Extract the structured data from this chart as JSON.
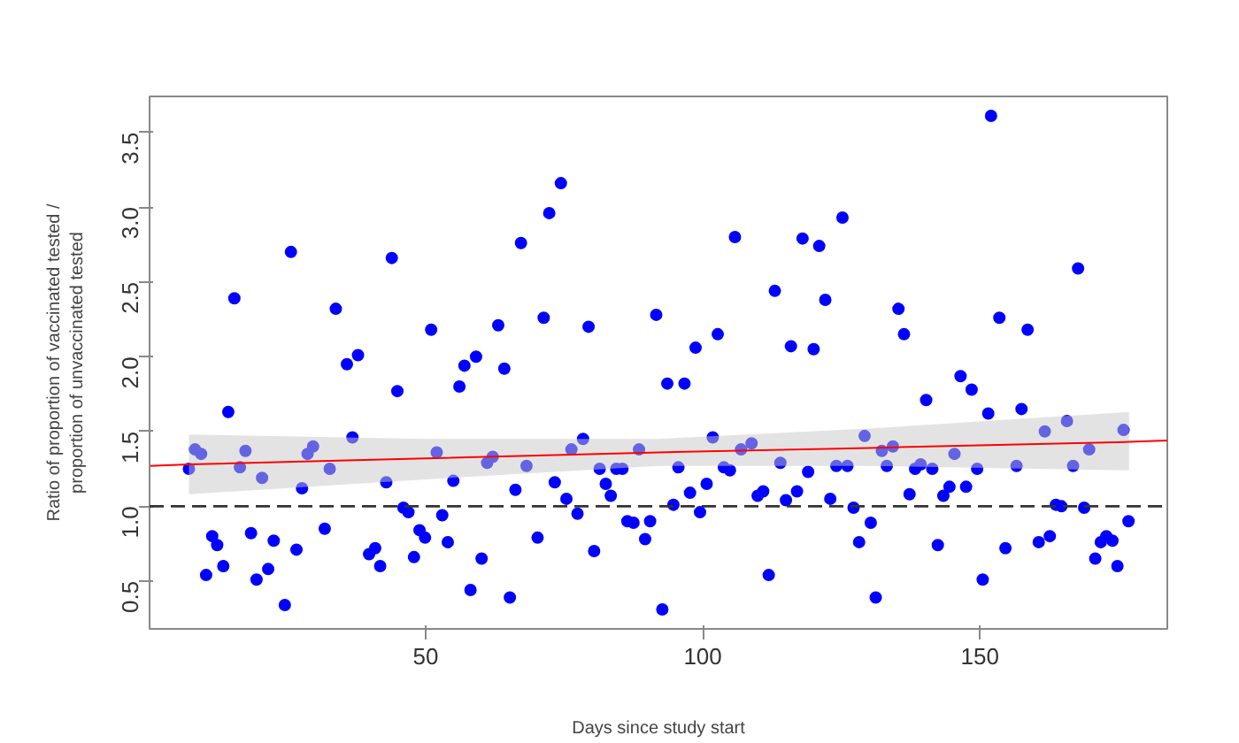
{
  "chart_data": {
    "type": "scatter",
    "xlabel": "Days since study start",
    "ylabel": "Ratio of proportion of vaccinated tested /\nproportion of unvaccinated tested",
    "xlim": [
      0.2,
      183.8
    ],
    "ylim": [
      0.18,
      3.74
    ],
    "xticks": [
      50,
      100,
      150
    ],
    "yticks": [
      {
        "value": 0.5,
        "label": "0.5"
      },
      {
        "value": 1,
        "label": "1.0"
      },
      {
        "value": 1.5,
        "label": "1.5"
      },
      {
        "value": 2,
        "label": "2.0"
      },
      {
        "value": 2.5,
        "label": "2.5"
      },
      {
        "value": 3,
        "label": "3.0"
      },
      {
        "value": 3.5,
        "label": "3.5"
      }
    ],
    "grid": false,
    "ref_lines": [
      {
        "axis": "y",
        "value": 1,
        "color": "#333333",
        "line_style": "dashed"
      }
    ],
    "series": [
      {
        "color": "#0000ff",
        "marker": "circle",
        "x": [
          7.3,
          8.4,
          9.5,
          10.4,
          11.5,
          12.4,
          13.5,
          14.4,
          15.5,
          16.5,
          17.5,
          18.5,
          19.5,
          20.5,
          21.6,
          22.6,
          24.6,
          25.7,
          26.7,
          27.7,
          28.7,
          29.7,
          31.8,
          32.7,
          33.8,
          35.8,
          36.8,
          37.8,
          39.8,
          40.9,
          41.8,
          42.9,
          43.9,
          44.9,
          46,
          46.9,
          47.9,
          48.9,
          49.9,
          51,
          52,
          53,
          54,
          55,
          56.1,
          57,
          58.1,
          59.1,
          60.1,
          61.1,
          62.1,
          63.1,
          64.2,
          65.2,
          66.2,
          67.2,
          68.2,
          70.2,
          71.3,
          72.3,
          73.3,
          74.4,
          75.4,
          76.3,
          77.4,
          78.4,
          79.4,
          80.4,
          81.4,
          82.5,
          83.4,
          84.4,
          85.5,
          86.4,
          87.5,
          88.5,
          89.6,
          90.5,
          91.6,
          92.7,
          93.6,
          94.7,
          95.6,
          96.7,
          97.7,
          98.7,
          99.5,
          100.7,
          101.8,
          102.7,
          103.8,
          104.9,
          105.8,
          106.9,
          108.8,
          109.9,
          110.9,
          111.9,
          113,
          114,
          115,
          115.9,
          117,
          118,
          119,
          120,
          121,
          122.1,
          123,
          124.1,
          125.2,
          126.1,
          127.2,
          128.2,
          129.2,
          130.3,
          131.2,
          132.3,
          133.2,
          134.3,
          135.3,
          136.3,
          137.3,
          138.3,
          139.3,
          140.3,
          141.4,
          142.4,
          143.4,
          144.5,
          145.4,
          146.5,
          147.5,
          148.5,
          149.5,
          150.5,
          151.5,
          152,
          153.5,
          154.6,
          156.6,
          157.5,
          158.6,
          160.6,
          161.7,
          162.6,
          163.7,
          164.7,
          165.7,
          166.8,
          167.7,
          168.8,
          169.7,
          170.8,
          171.8,
          172.8,
          173.9,
          174.8,
          175.9,
          176.8
        ],
        "values": [
          1.25,
          1.38,
          1.35,
          0.54,
          0.8,
          0.74,
          0.6,
          1.63,
          2.39,
          1.26,
          1.37,
          0.82,
          0.51,
          1.19,
          0.58,
          0.77,
          0.34,
          2.7,
          0.71,
          1.12,
          1.35,
          1.4,
          0.85,
          1.25,
          2.32,
          1.95,
          1.46,
          2.01,
          0.68,
          0.72,
          0.6,
          1.16,
          2.66,
          1.77,
          0.99,
          0.96,
          0.66,
          0.84,
          0.79,
          2.18,
          1.36,
          0.94,
          0.76,
          1.17,
          1.8,
          1.94,
          0.44,
          2.0,
          0.65,
          1.29,
          1.33,
          2.21,
          1.92,
          0.39,
          1.11,
          2.76,
          1.27,
          0.79,
          2.26,
          2.96,
          1.16,
          3.16,
          1.05,
          1.38,
          0.95,
          1.45,
          2.2,
          0.7,
          1.25,
          1.15,
          1.07,
          1.25,
          1.25,
          0.9,
          0.89,
          1.38,
          0.78,
          0.9,
          2.28,
          0.31,
          1.82,
          1.01,
          1.26,
          1.82,
          1.09,
          2.06,
          0.96,
          1.15,
          1.46,
          2.15,
          1.26,
          1.24,
          2.8,
          1.38,
          1.42,
          1.07,
          1.1,
          0.54,
          2.44,
          1.29,
          1.04,
          2.07,
          1.1,
          2.79,
          1.23,
          2.05,
          2.74,
          2.38,
          1.05,
          1.27,
          2.93,
          1.27,
          0.99,
          0.76,
          1.47,
          0.89,
          0.39,
          1.37,
          1.27,
          1.4,
          2.32,
          2.15,
          1.08,
          1.25,
          1.28,
          1.71,
          1.25,
          0.74,
          1.07,
          1.13,
          1.35,
          1.87,
          1.13,
          1.78,
          1.25,
          0.51,
          1.62,
          3.61,
          2.26,
          0.72,
          1.27,
          1.65,
          2.18,
          0.76,
          1.5,
          0.8,
          1.01,
          1.0,
          1.57,
          1.27,
          2.59,
          0.99,
          1.38,
          0.65,
          0.76,
          0.8,
          0.77,
          0.6,
          1.51,
          0.9
        ]
      },
      {
        "type": "line",
        "color": "#ff0000",
        "x": [
          0.2,
          7.3,
          50,
          92,
          130,
          176.9,
          183.8
        ],
        "values": [
          1.27,
          1.28,
          1.32,
          1.36,
          1.39,
          1.43,
          1.44
        ],
        "lower": [
          null,
          1.08,
          1.18,
          1.27,
          1.27,
          1.24,
          null
        ],
        "upper": [
          null,
          1.48,
          1.45,
          1.45,
          1.52,
          1.63,
          null
        ]
      }
    ]
  }
}
